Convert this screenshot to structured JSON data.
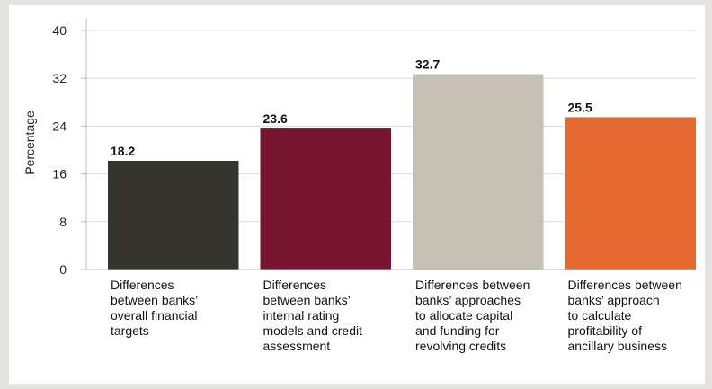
{
  "chart_data": {
    "type": "bar",
    "title": "",
    "xlabel": "",
    "ylabel": "Percentage",
    "ylim": [
      0,
      40
    ],
    "yticks": [
      0,
      8,
      16,
      24,
      32,
      40
    ],
    "grid": true,
    "categories": [
      "Differences between banks’ overall financial targets",
      "Differences between banks’ internal rating models and credit assessment",
      "Differences between banks’ approaches to allocate capital and funding for revolving credits",
      "Differences between banks’ approach to calculate profitability of ancillary business"
    ],
    "category_lines": [
      [
        "Differences",
        "between banks’",
        "overall financial",
        "targets"
      ],
      [
        "Differences",
        "between banks’",
        "internal rating",
        "models and credit",
        "assessment"
      ],
      [
        "Differences between",
        "banks’ approaches",
        "to allocate capital",
        "and funding for",
        "revolving credits"
      ],
      [
        "Differences between",
        "banks’ approach",
        "to calculate",
        "profitability of",
        "ancillary business"
      ]
    ],
    "values": [
      18.2,
      23.6,
      32.7,
      25.5
    ],
    "data_labels": [
      "18.2",
      "23.6",
      "32.7",
      "25.5"
    ],
    "colors": [
      "#34342c",
      "#7a1531",
      "#c6c0b5",
      "#e46a32"
    ]
  }
}
